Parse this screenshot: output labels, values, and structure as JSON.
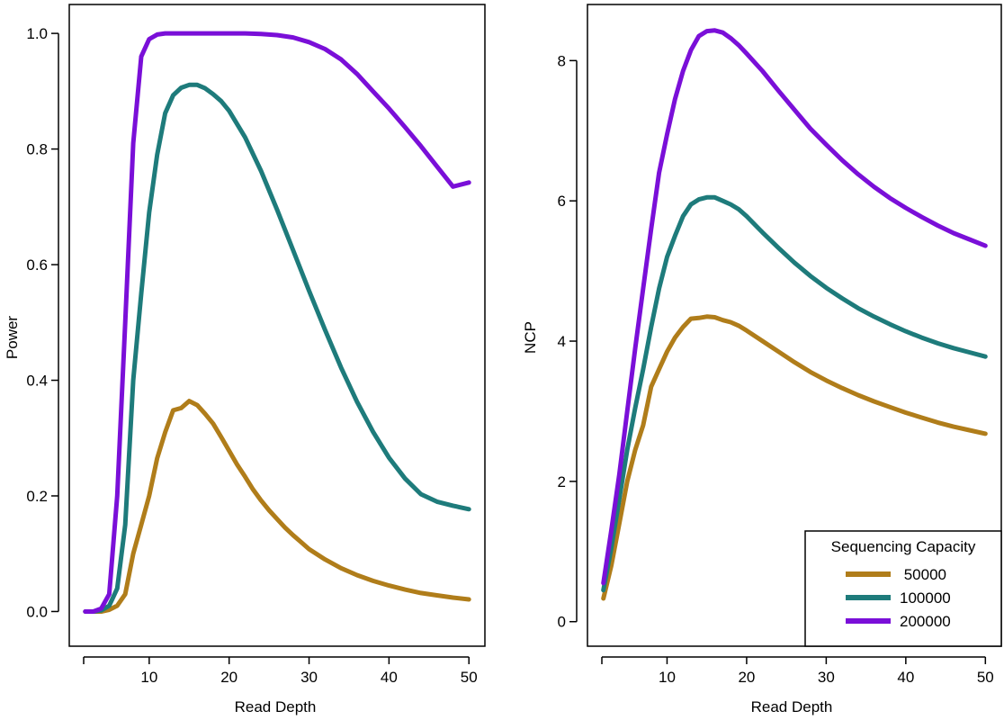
{
  "chart_data": [
    {
      "type": "line",
      "xlabel": "Read Depth",
      "ylabel": "Power",
      "xlim": [
        0,
        52
      ],
      "ylim": [
        -0.06,
        1.05
      ],
      "xticks": [
        10,
        20,
        30,
        40,
        50
      ],
      "xtick_labels": [
        "10",
        "20",
        "30",
        "40",
        "50"
      ],
      "yticks": [
        0,
        0.2,
        0.4,
        0.6,
        0.8,
        1.0
      ],
      "ytick_labels": [
        "0.0",
        "0.2",
        "0.4",
        "0.6",
        "0.8",
        "1.0"
      ],
      "grid": false,
      "series": [
        {
          "name": "50000",
          "color": "#B07D1A",
          "x": [
            2,
            3,
            4,
            5,
            6,
            7,
            8,
            9,
            10,
            11,
            12,
            13,
            14,
            15,
            16,
            17,
            18,
            19,
            20,
            21,
            22,
            23,
            24,
            25,
            26,
            27,
            28,
            29,
            30,
            32,
            34,
            36,
            38,
            40,
            42,
            44,
            46,
            48,
            50
          ],
          "y": [
            0,
            0,
            0,
            0.003,
            0.01,
            0.03,
            0.1,
            0.15,
            0.2,
            0.265,
            0.31,
            0.348,
            0.352,
            0.364,
            0.357,
            0.342,
            0.325,
            0.302,
            0.278,
            0.254,
            0.233,
            0.211,
            0.192,
            0.175,
            0.16,
            0.145,
            0.132,
            0.12,
            0.108,
            0.09,
            0.075,
            0.063,
            0.053,
            0.045,
            0.038,
            0.032,
            0.028,
            0.024,
            0.021
          ]
        },
        {
          "name": "100000",
          "color": "#1E7B7B",
          "x": [
            2,
            3,
            4,
            5,
            6,
            7,
            8,
            9,
            10,
            11,
            12,
            13,
            14,
            15,
            16,
            17,
            18,
            19,
            20,
            22,
            24,
            26,
            28,
            30,
            32,
            34,
            36,
            38,
            40,
            42,
            44,
            46,
            48,
            50
          ],
          "y": [
            0,
            0,
            0.002,
            0.01,
            0.04,
            0.15,
            0.4,
            0.55,
            0.69,
            0.79,
            0.862,
            0.893,
            0.906,
            0.911,
            0.911,
            0.905,
            0.895,
            0.883,
            0.866,
            0.82,
            0.762,
            0.695,
            0.625,
            0.555,
            0.487,
            0.422,
            0.363,
            0.311,
            0.266,
            0.23,
            0.203,
            0.19,
            0.183,
            0.177
          ]
        },
        {
          "name": "200000",
          "color": "#7A0FD8",
          "x": [
            2,
            3,
            4,
            5,
            6,
            7,
            8,
            9,
            10,
            11,
            12,
            14,
            16,
            18,
            20,
            22,
            24,
            26,
            28,
            30,
            32,
            34,
            36,
            38,
            40,
            42,
            44,
            46,
            48,
            50
          ],
          "y": [
            0,
            0,
            0.005,
            0.03,
            0.2,
            0.5,
            0.81,
            0.96,
            0.99,
            0.998,
            1.0,
            1.0,
            1.0,
            1.0,
            1.0,
            1.0,
            0.999,
            0.997,
            0.993,
            0.985,
            0.973,
            0.955,
            0.93,
            0.9,
            0.87,
            0.838,
            0.805,
            0.77,
            0.735,
            0.742
          ]
        }
      ]
    },
    {
      "type": "line",
      "xlabel": "Read Depth",
      "ylabel": "NCP",
      "xlim": [
        0,
        52
      ],
      "ylim": [
        -0.35,
        8.8
      ],
      "xticks": [
        10,
        20,
        30,
        40,
        50
      ],
      "xtick_labels": [
        "10",
        "20",
        "30",
        "40",
        "50"
      ],
      "yticks": [
        0,
        2,
        4,
        6,
        8
      ],
      "ytick_labels": [
        "0",
        "2",
        "4",
        "6",
        "8"
      ],
      "grid": false,
      "legend": {
        "title": "Sequencing Capacity",
        "position": "bottom-right",
        "entries": [
          " 50000",
          "100000",
          "200000"
        ]
      },
      "series": [
        {
          "name": "50000",
          "color": "#B07D1A",
          "x": [
            2,
            3,
            4,
            5,
            6,
            7,
            8,
            9,
            10,
            11,
            12,
            13,
            14,
            15,
            16,
            17,
            18,
            19,
            20,
            22,
            24,
            26,
            28,
            30,
            32,
            34,
            36,
            38,
            40,
            42,
            44,
            46,
            48,
            50
          ],
          "y": [
            0.33,
            0.8,
            1.4,
            2.0,
            2.45,
            2.8,
            3.35,
            3.6,
            3.85,
            4.05,
            4.2,
            4.32,
            4.33,
            4.35,
            4.34,
            4.3,
            4.27,
            4.22,
            4.15,
            4.0,
            3.85,
            3.7,
            3.56,
            3.44,
            3.33,
            3.23,
            3.14,
            3.06,
            2.98,
            2.91,
            2.84,
            2.78,
            2.73,
            2.68
          ]
        },
        {
          "name": "100000",
          "color": "#1E7B7B",
          "x": [
            2,
            3,
            4,
            5,
            6,
            7,
            8,
            9,
            10,
            11,
            12,
            13,
            14,
            15,
            16,
            17,
            18,
            19,
            20,
            22,
            24,
            26,
            28,
            30,
            32,
            34,
            36,
            38,
            40,
            42,
            44,
            46,
            48,
            50
          ],
          "y": [
            0.45,
            1.05,
            1.75,
            2.45,
            3.05,
            3.6,
            4.2,
            4.75,
            5.2,
            5.5,
            5.78,
            5.95,
            6.02,
            6.05,
            6.05,
            6.0,
            5.95,
            5.88,
            5.78,
            5.55,
            5.33,
            5.12,
            4.93,
            4.76,
            4.61,
            4.47,
            4.35,
            4.24,
            4.14,
            4.05,
            3.97,
            3.9,
            3.84,
            3.78
          ]
        },
        {
          "name": "200000",
          "color": "#7A0FD8",
          "x": [
            2,
            3,
            4,
            5,
            6,
            7,
            8,
            9,
            10,
            11,
            12,
            13,
            14,
            15,
            16,
            17,
            18,
            19,
            20,
            22,
            24,
            26,
            28,
            30,
            32,
            34,
            36,
            38,
            40,
            42,
            44,
            46,
            48,
            50
          ],
          "y": [
            0.55,
            1.3,
            2.1,
            3.0,
            3.9,
            4.75,
            5.6,
            6.4,
            6.95,
            7.45,
            7.85,
            8.15,
            8.35,
            8.42,
            8.43,
            8.4,
            8.32,
            8.22,
            8.1,
            7.85,
            7.57,
            7.3,
            7.03,
            6.8,
            6.58,
            6.38,
            6.2,
            6.04,
            5.9,
            5.77,
            5.65,
            5.54,
            5.45,
            5.36
          ]
        }
      ]
    }
  ]
}
